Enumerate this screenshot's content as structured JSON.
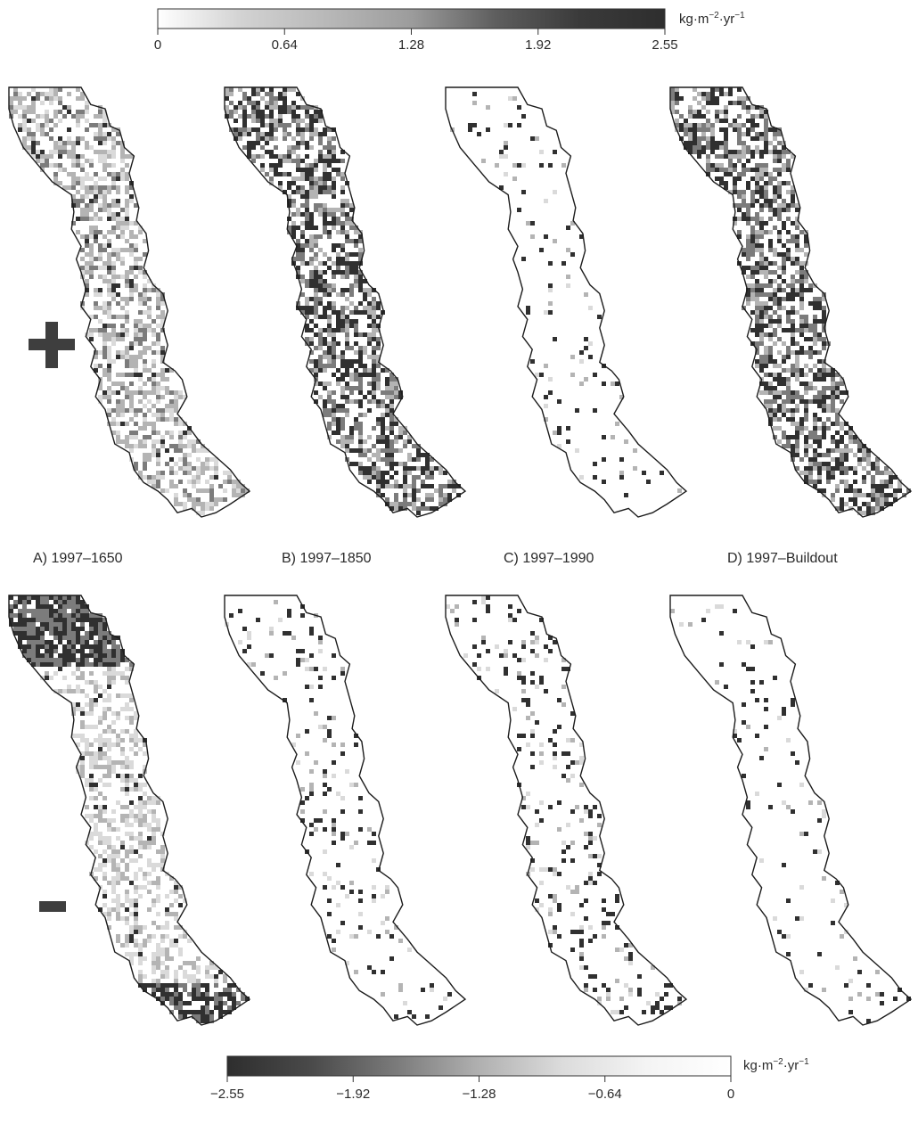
{
  "top_legend": {
    "ticks": [
      "0",
      "0.64",
      "1.28",
      "1.92",
      "2.55"
    ],
    "unit": {
      "base": "kg·m",
      "exp1": "−2",
      "mid": "·yr",
      "exp2": "−1"
    },
    "ramp": [
      "#ffffff",
      "#d2d2d2",
      "#b8b8b8",
      "#9c9c9c",
      "#5e5e5e",
      "#3a3a3a",
      "#2e2e2e"
    ]
  },
  "bottom_legend": {
    "ticks": [
      "−2.55",
      "−1.92",
      "−1.28",
      "−0.64",
      "0"
    ],
    "unit": {
      "base": "kg·m",
      "exp1": "−2",
      "mid": "·yr",
      "exp2": "−1"
    },
    "ramp": [
      "#2e2e2e",
      "#4a4a4a",
      "#7a7a7a",
      "#b0b0b0",
      "#dcdcdc",
      "#f4f4f4",
      "#ffffff"
    ]
  },
  "row_signs": {
    "positive": "plus-sign",
    "negative": "minus-sign"
  },
  "panels": [
    {
      "label": "A) 1997–1650",
      "pos_density": 0.55,
      "pos_tone": "light",
      "neg_density": 0.45,
      "neg_tone": "dark-north"
    },
    {
      "label": "B) 1997–1850",
      "pos_density": 0.6,
      "pos_tone": "dark",
      "neg_density": 0.1,
      "neg_tone": "sparse"
    },
    {
      "label": "C) 1997–1990",
      "pos_density": 0.06,
      "pos_tone": "sparse",
      "neg_density": 0.14,
      "neg_tone": "sparse"
    },
    {
      "label": "D) 1997–Buildout",
      "pos_density": 0.6,
      "pos_tone": "dark",
      "neg_density": 0.06,
      "neg_tone": "sparse"
    }
  ],
  "colors": {
    "outline": "#1c1c1c",
    "dark": "#303030",
    "mid": "#7c7c7c",
    "light": "#b4b4b4",
    "pale": "#dadada"
  }
}
